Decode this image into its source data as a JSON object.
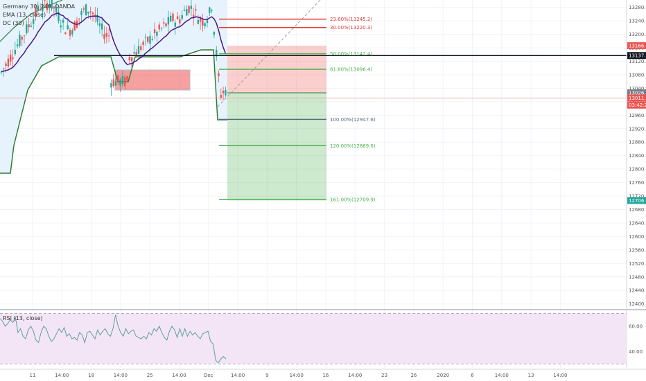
{
  "header": {
    "symbol_line": "Germany 30, 240, OANDA",
    "indicator_1": "EMA (13, close)",
    "indicator_2": "DC (30)"
  },
  "chart_data": {
    "type": "candlestick",
    "price_axis": {
      "ticks": [
        "13280.0",
        "13240.0",
        "13200.0",
        "13160.0",
        "13120.0",
        "13080.0",
        "13040.0",
        "13000.0",
        "12960.0",
        "12920.0",
        "12880.0",
        "12840.0",
        "12800.0",
        "12760.0",
        "12720.0",
        "12680.0",
        "12640.0",
        "12600.0",
        "12560.0",
        "12520.0",
        "12480.0",
        "12440.0",
        "12400.0"
      ],
      "range": [
        12385,
        13302
      ]
    },
    "time_axis": {
      "ticks": [
        "11",
        "14:00",
        "18",
        "14:00",
        "25",
        "14:00",
        "Dec",
        "14:00",
        "9",
        "14:00",
        "16",
        "14:00",
        "23",
        "26",
        "2020",
        "6",
        "14:00",
        "13",
        "14:00"
      ]
    },
    "fib_levels": [
      {
        "label": "23.60%(13245.2)",
        "value": 13245.2,
        "color": "#e53935"
      },
      {
        "label": "30.00%(13220.3)",
        "value": 13220.3,
        "color": "#e53935"
      },
      {
        "label": "50.00%(13142.4)",
        "value": 13142.4,
        "color": "#4caf50"
      },
      {
        "label": "61.80%(13096.4)",
        "value": 13096.4,
        "color": "#4caf50"
      },
      {
        "label": "100.00%(12947.6)",
        "value": 12947.6,
        "color": "#546e7a"
      },
      {
        "label": "120.00%(12869.6)",
        "value": 12869.6,
        "color": "#4caf50"
      },
      {
        "label": "161.00%(12709.9)",
        "value": 12709.9,
        "color": "#4caf50"
      }
    ],
    "price_tags": [
      {
        "label": "13166.5",
        "value": 13166.5,
        "color": "#ef5350"
      },
      {
        "label": "13137.1",
        "value": 13137.1,
        "color": "#131722"
      },
      {
        "label": "13026.4",
        "value": 13026.4,
        "color": "#787b86"
      },
      {
        "label": "13011.2",
        "value": 13011.2,
        "color": "#ef5350"
      },
      {
        "label": "03:42:24",
        "value": 12990,
        "color": "#ef5350"
      },
      {
        "label": "12706.9",
        "value": 12706.9,
        "color": "#26a69a"
      }
    ],
    "horizontal_line": {
      "value": 13137.1,
      "color": "#131722"
    },
    "position": {
      "entry": 13026.4,
      "stop": 13166.5,
      "target": 12706.9
    },
    "rsi": {
      "label": "RSI (13, close)",
      "ticks": [
        "60.00",
        "40.00"
      ],
      "range": [
        27,
        72
      ],
      "band_upper": 70,
      "band_lower": 30,
      "values": [
        66,
        64,
        60,
        62,
        65,
        63,
        67,
        55,
        58,
        52,
        50,
        57,
        60,
        56,
        49,
        47,
        55,
        60,
        58,
        52,
        48,
        50,
        54,
        58,
        55,
        59,
        52,
        54,
        50,
        51,
        49,
        55,
        53,
        47,
        55,
        56,
        53,
        50,
        57,
        53,
        56,
        58,
        54,
        52,
        58,
        69,
        60,
        55,
        52,
        58,
        54,
        56,
        57,
        52,
        51,
        50,
        52,
        50,
        55,
        53,
        58,
        56,
        60,
        55,
        51,
        49,
        56,
        60,
        57,
        51,
        58,
        52,
        58,
        52,
        56,
        53,
        55,
        52,
        50,
        54,
        55,
        56,
        48,
        46,
        33,
        31,
        34,
        36,
        34
      ]
    },
    "colors": {
      "up": "#26a69a",
      "down": "#ef5350",
      "ema": "#4a148c",
      "donchian_line": "#2e7d32",
      "donchian_fill": "#e3f2fd",
      "rsi_line": "#5c9ea0",
      "rsi_band": "#f3e5f5"
    }
  }
}
